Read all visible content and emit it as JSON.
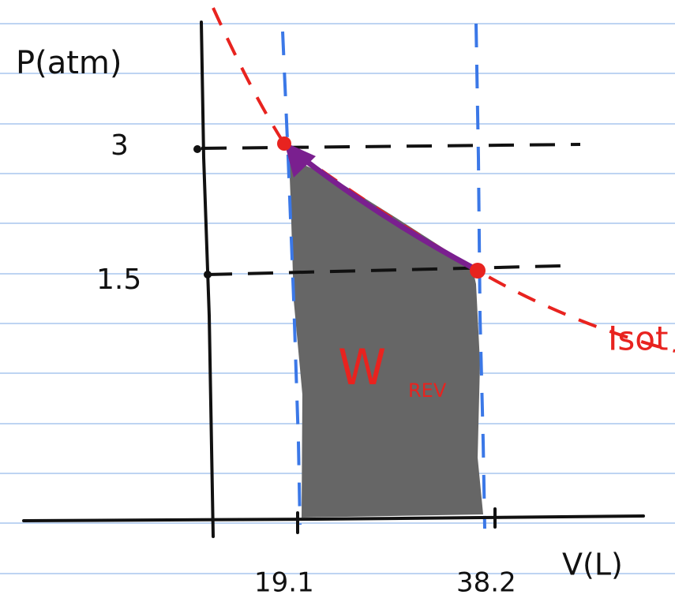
{
  "axes": {
    "y_label": "P(atm)",
    "x_label": "V(L)",
    "y_marks": [
      "3",
      "1.5"
    ],
    "x_marks": [
      "19.1",
      "38.2"
    ]
  },
  "area_label": {
    "main": "W",
    "subscript": "REV"
  },
  "curve_label": "Isot"
}
